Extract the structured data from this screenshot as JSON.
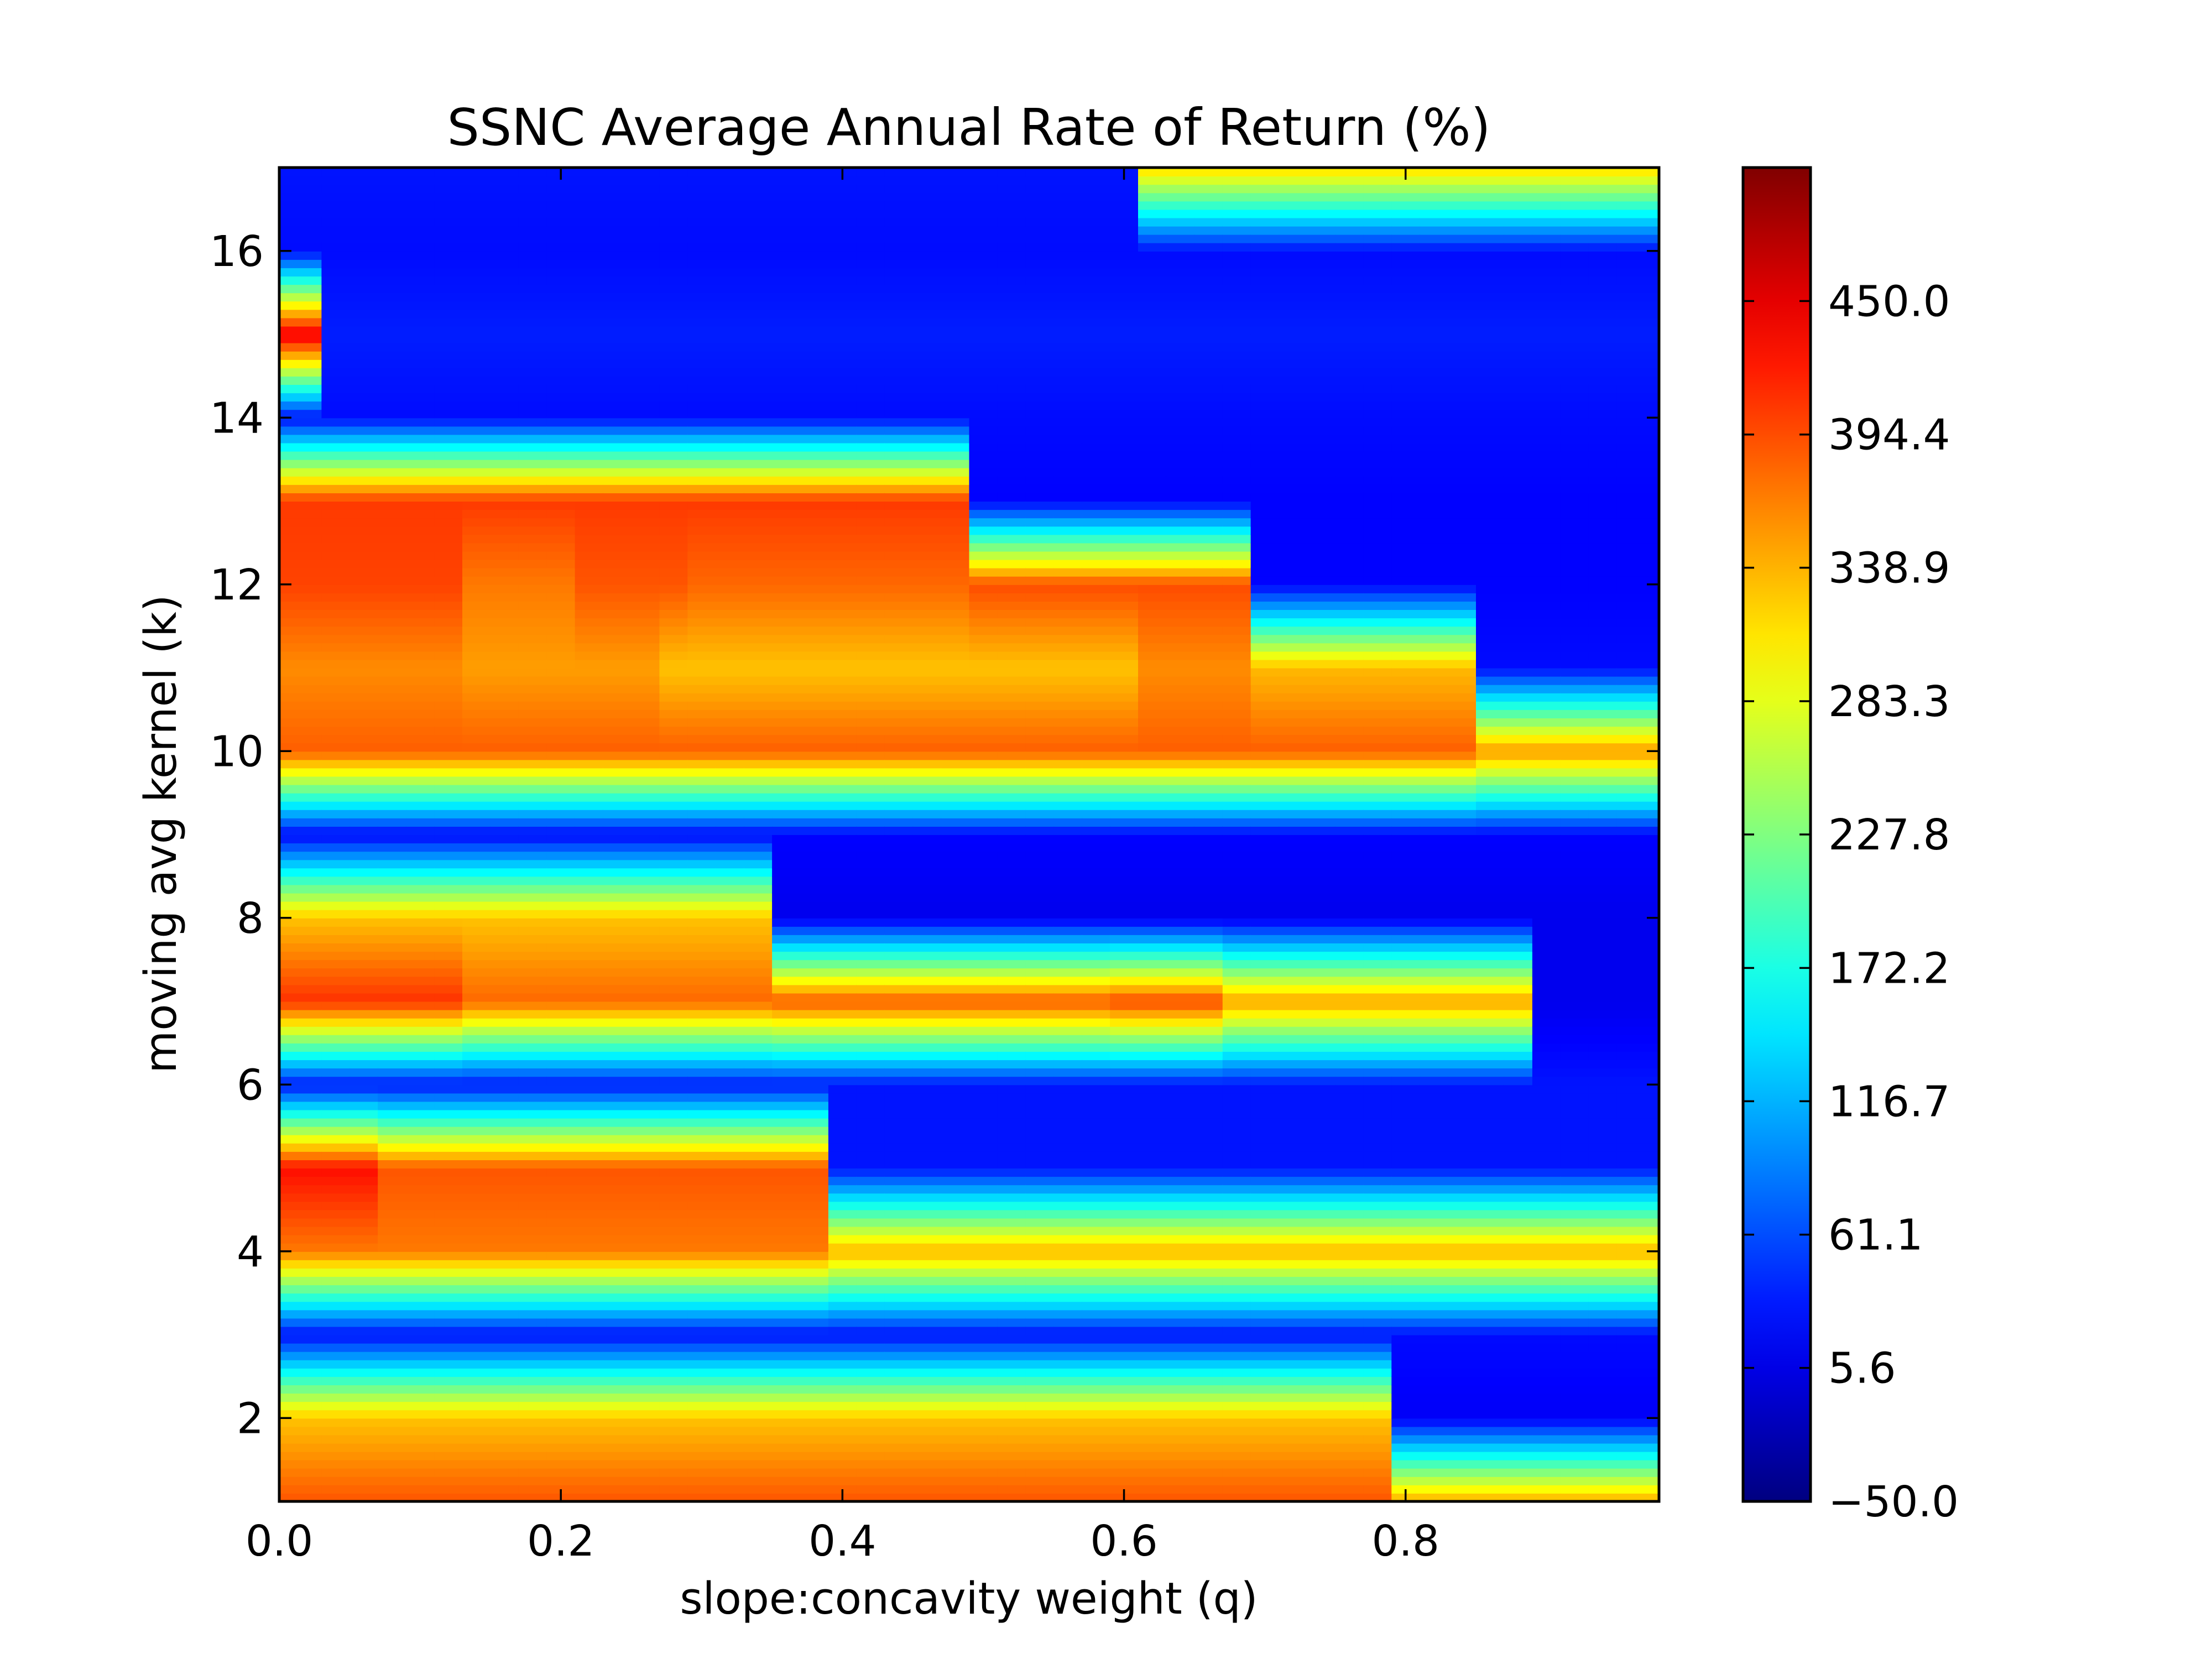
{
  "chart_data": {
    "type": "heatmap",
    "plot_style": "filled-contour",
    "title": "SSNC Average Annual Rate of Return (%)",
    "xlabel": "slope:concavity weight (q)",
    "ylabel": "moving avg kernel (k)",
    "xlim": [
      0.0,
      0.98
    ],
    "ylim": [
      1,
      17
    ],
    "x_ticks": [
      0.0,
      0.2,
      0.4,
      0.6,
      0.8
    ],
    "x_tick_labels": [
      "0.0",
      "0.2",
      "0.4",
      "0.6",
      "0.8"
    ],
    "y_ticks": [
      2,
      4,
      6,
      8,
      10,
      12,
      14,
      16
    ],
    "y_tick_labels": [
      "2",
      "4",
      "6",
      "8",
      "10",
      "12",
      "14",
      "16"
    ],
    "colormap": "jet",
    "colorbar": {
      "min": -50.0,
      "max": 505.6,
      "ticks": [
        -50.0,
        5.6,
        61.1,
        116.7,
        172.2,
        227.8,
        283.3,
        338.9,
        394.4,
        450.0
      ],
      "tick_labels": [
        "−50.0",
        "5.6",
        "61.1",
        "116.7",
        "172.2",
        "227.8",
        "283.3",
        "338.9",
        "394.4",
        "450.0"
      ]
    },
    "grid": false,
    "q": [
      0.0,
      0.02,
      0.04,
      0.06,
      0.08,
      0.1,
      0.12,
      0.14,
      0.16,
      0.18,
      0.2,
      0.22,
      0.24,
      0.26,
      0.28,
      0.3,
      0.32,
      0.34,
      0.36,
      0.38,
      0.4,
      0.42,
      0.44,
      0.46,
      0.48,
      0.5,
      0.52,
      0.54,
      0.56,
      0.58,
      0.6,
      0.62,
      0.64,
      0.66,
      0.68,
      0.7,
      0.72,
      0.74,
      0.76,
      0.78,
      0.8,
      0.82,
      0.84,
      0.86,
      0.88,
      0.9,
      0.92,
      0.94,
      0.96,
      0.98
    ],
    "k": [
      1,
      2,
      3,
      4,
      5,
      6,
      7,
      8,
      9,
      10,
      11,
      12,
      13,
      14,
      15,
      16,
      17
    ],
    "z_segments": [
      {
        "k": 1,
        "segments": [
          {
            "q_end": 0.78,
            "value": 390
          },
          {
            "q_end": 0.98,
            "value": 345
          }
        ]
      },
      {
        "k": 2,
        "segments": [
          {
            "q_end": 0.78,
            "value": 330
          },
          {
            "q_end": 0.98,
            "value": 15
          }
        ]
      },
      {
        "k": 3,
        "segments": [
          {
            "q_end": 0.98,
            "value": 25
          }
        ]
      },
      {
        "k": 4,
        "segments": [
          {
            "q_end": 0.38,
            "value": 370
          },
          {
            "q_end": 0.98,
            "value": 340
          }
        ]
      },
      {
        "k": 5,
        "segments": [
          {
            "q_end": 0.06,
            "value": 430
          },
          {
            "q_end": 0.38,
            "value": 390
          },
          {
            "q_end": 0.98,
            "value": 30
          }
        ]
      },
      {
        "k": 6,
        "segments": [
          {
            "q_end": 0.98,
            "value": 30
          }
        ]
      },
      {
        "k": 7,
        "segments": [
          {
            "q_end": 0.12,
            "value": 410
          },
          {
            "q_end": 0.34,
            "value": 380
          },
          {
            "q_end": 0.58,
            "value": 390
          },
          {
            "q_end": 0.66,
            "value": 400
          },
          {
            "q_end": 0.88,
            "value": 350
          },
          {
            "q_end": 0.98,
            "value": 10
          }
        ]
      },
      {
        "k": 8,
        "segments": [
          {
            "q_end": 0.34,
            "value": 330
          },
          {
            "q_end": 0.98,
            "value": 10
          }
        ]
      },
      {
        "k": 9,
        "segments": [
          {
            "q_end": 0.98,
            "value": 20
          }
        ]
      },
      {
        "k": 10,
        "segments": [
          {
            "q_end": 0.84,
            "value": 385
          },
          {
            "q_end": 0.98,
            "value": 355
          }
        ]
      },
      {
        "k": 11,
        "segments": [
          {
            "q_end": 0.12,
            "value": 360
          },
          {
            "q_end": 0.26,
            "value": 350
          },
          {
            "q_end": 0.6,
            "value": 330
          },
          {
            "q_end": 0.68,
            "value": 360
          },
          {
            "q_end": 0.84,
            "value": 335
          },
          {
            "q_end": 0.98,
            "value": 25
          }
        ]
      },
      {
        "k": 12,
        "segments": [
          {
            "q_end": 0.12,
            "value": 400
          },
          {
            "q_end": 0.2,
            "value": 370
          },
          {
            "q_end": 0.28,
            "value": 390
          },
          {
            "q_end": 0.48,
            "value": 380
          },
          {
            "q_end": 0.68,
            "value": 395
          },
          {
            "q_end": 0.98,
            "value": 20
          }
        ]
      },
      {
        "k": 13,
        "segments": [
          {
            "q_end": 0.48,
            "value": 405
          },
          {
            "q_end": 0.98,
            "value": 20
          }
        ]
      },
      {
        "k": 14,
        "segments": [
          {
            "q_end": 0.98,
            "value": 25
          }
        ]
      },
      {
        "k": 15,
        "segments": [
          {
            "q_end": 0.02,
            "value": 450
          },
          {
            "q_end": 0.98,
            "value": 35
          }
        ]
      },
      {
        "k": 16,
        "segments": [
          {
            "q_end": 0.98,
            "value": 25
          }
        ]
      },
      {
        "k": 17,
        "segments": [
          {
            "q_end": 0.6,
            "value": 30
          },
          {
            "q_end": 0.98,
            "value": 320
          }
        ]
      }
    ]
  }
}
